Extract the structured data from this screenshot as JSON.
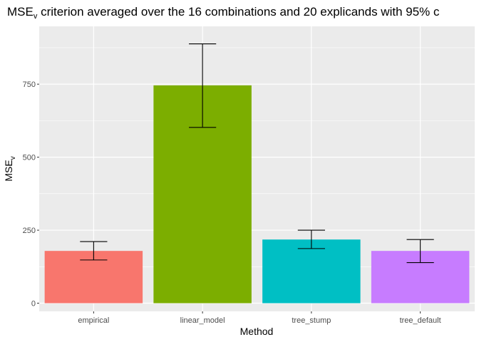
{
  "chart_data": {
    "type": "bar",
    "title_main": "MSE",
    "title_sub": "v",
    "title_rest": " criterion averaged over the 16 combinations and 20 explicands with 95% c",
    "xlabel": "Method",
    "ylabel_main": "MSE",
    "ylabel_sub": "v",
    "categories": [
      "empirical",
      "linear_model",
      "tree_stump",
      "tree_default"
    ],
    "values": [
      179,
      746,
      218,
      179
    ],
    "error_low": [
      148,
      602,
      187,
      139
    ],
    "error_high": [
      211,
      888,
      250,
      218
    ],
    "colors": [
      "#F8766D",
      "#7CAE00",
      "#00BFC4",
      "#C77CFF"
    ],
    "ylim": [
      -28,
      948
    ],
    "yticks": [
      0,
      250,
      500,
      750
    ],
    "ytick_labels": [
      "0",
      "250",
      "500",
      "750"
    ],
    "grid": true,
    "legend": "none"
  }
}
